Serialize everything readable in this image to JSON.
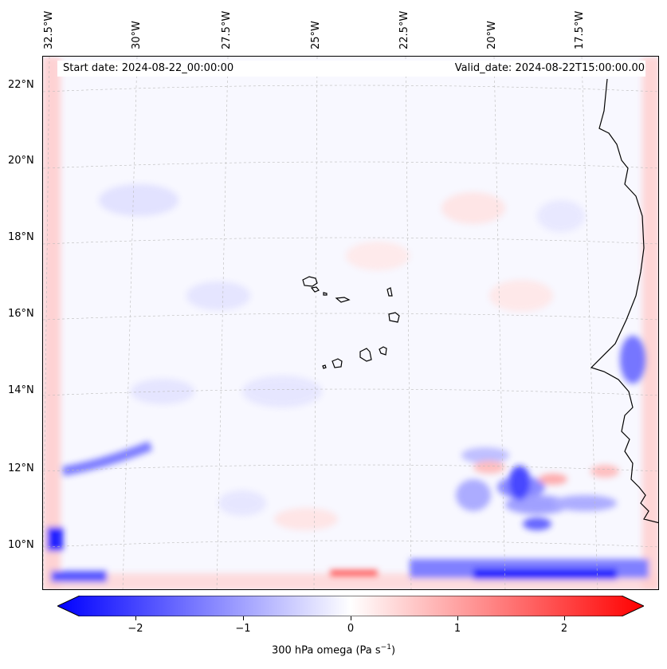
{
  "header": {
    "start_date": "Start date: 2024-08-22_00:00:00",
    "valid_date": "Valid_date: 2024-08-22T15:00:00.00"
  },
  "lon_ticks": [
    "32.5°W",
    "30°W",
    "27.5°W",
    "25°W",
    "22.5°W",
    "20°W",
    "17.5°W"
  ],
  "lat_ticks": [
    "22°N",
    "20°N",
    "18°N",
    "16°N",
    "14°N",
    "12°N",
    "10°N"
  ],
  "colorbar": {
    "ticks": [
      "−2",
      "−1",
      "0",
      "1",
      "2"
    ],
    "label_main": "300 hPa omega (Pa s",
    "label_sup": "−1",
    "label_end": ")",
    "min": -2.75,
    "max": 2.75,
    "low_color": "#0000ff",
    "mid_color": "#ffffff",
    "high_color": "#ff0000"
  }
}
